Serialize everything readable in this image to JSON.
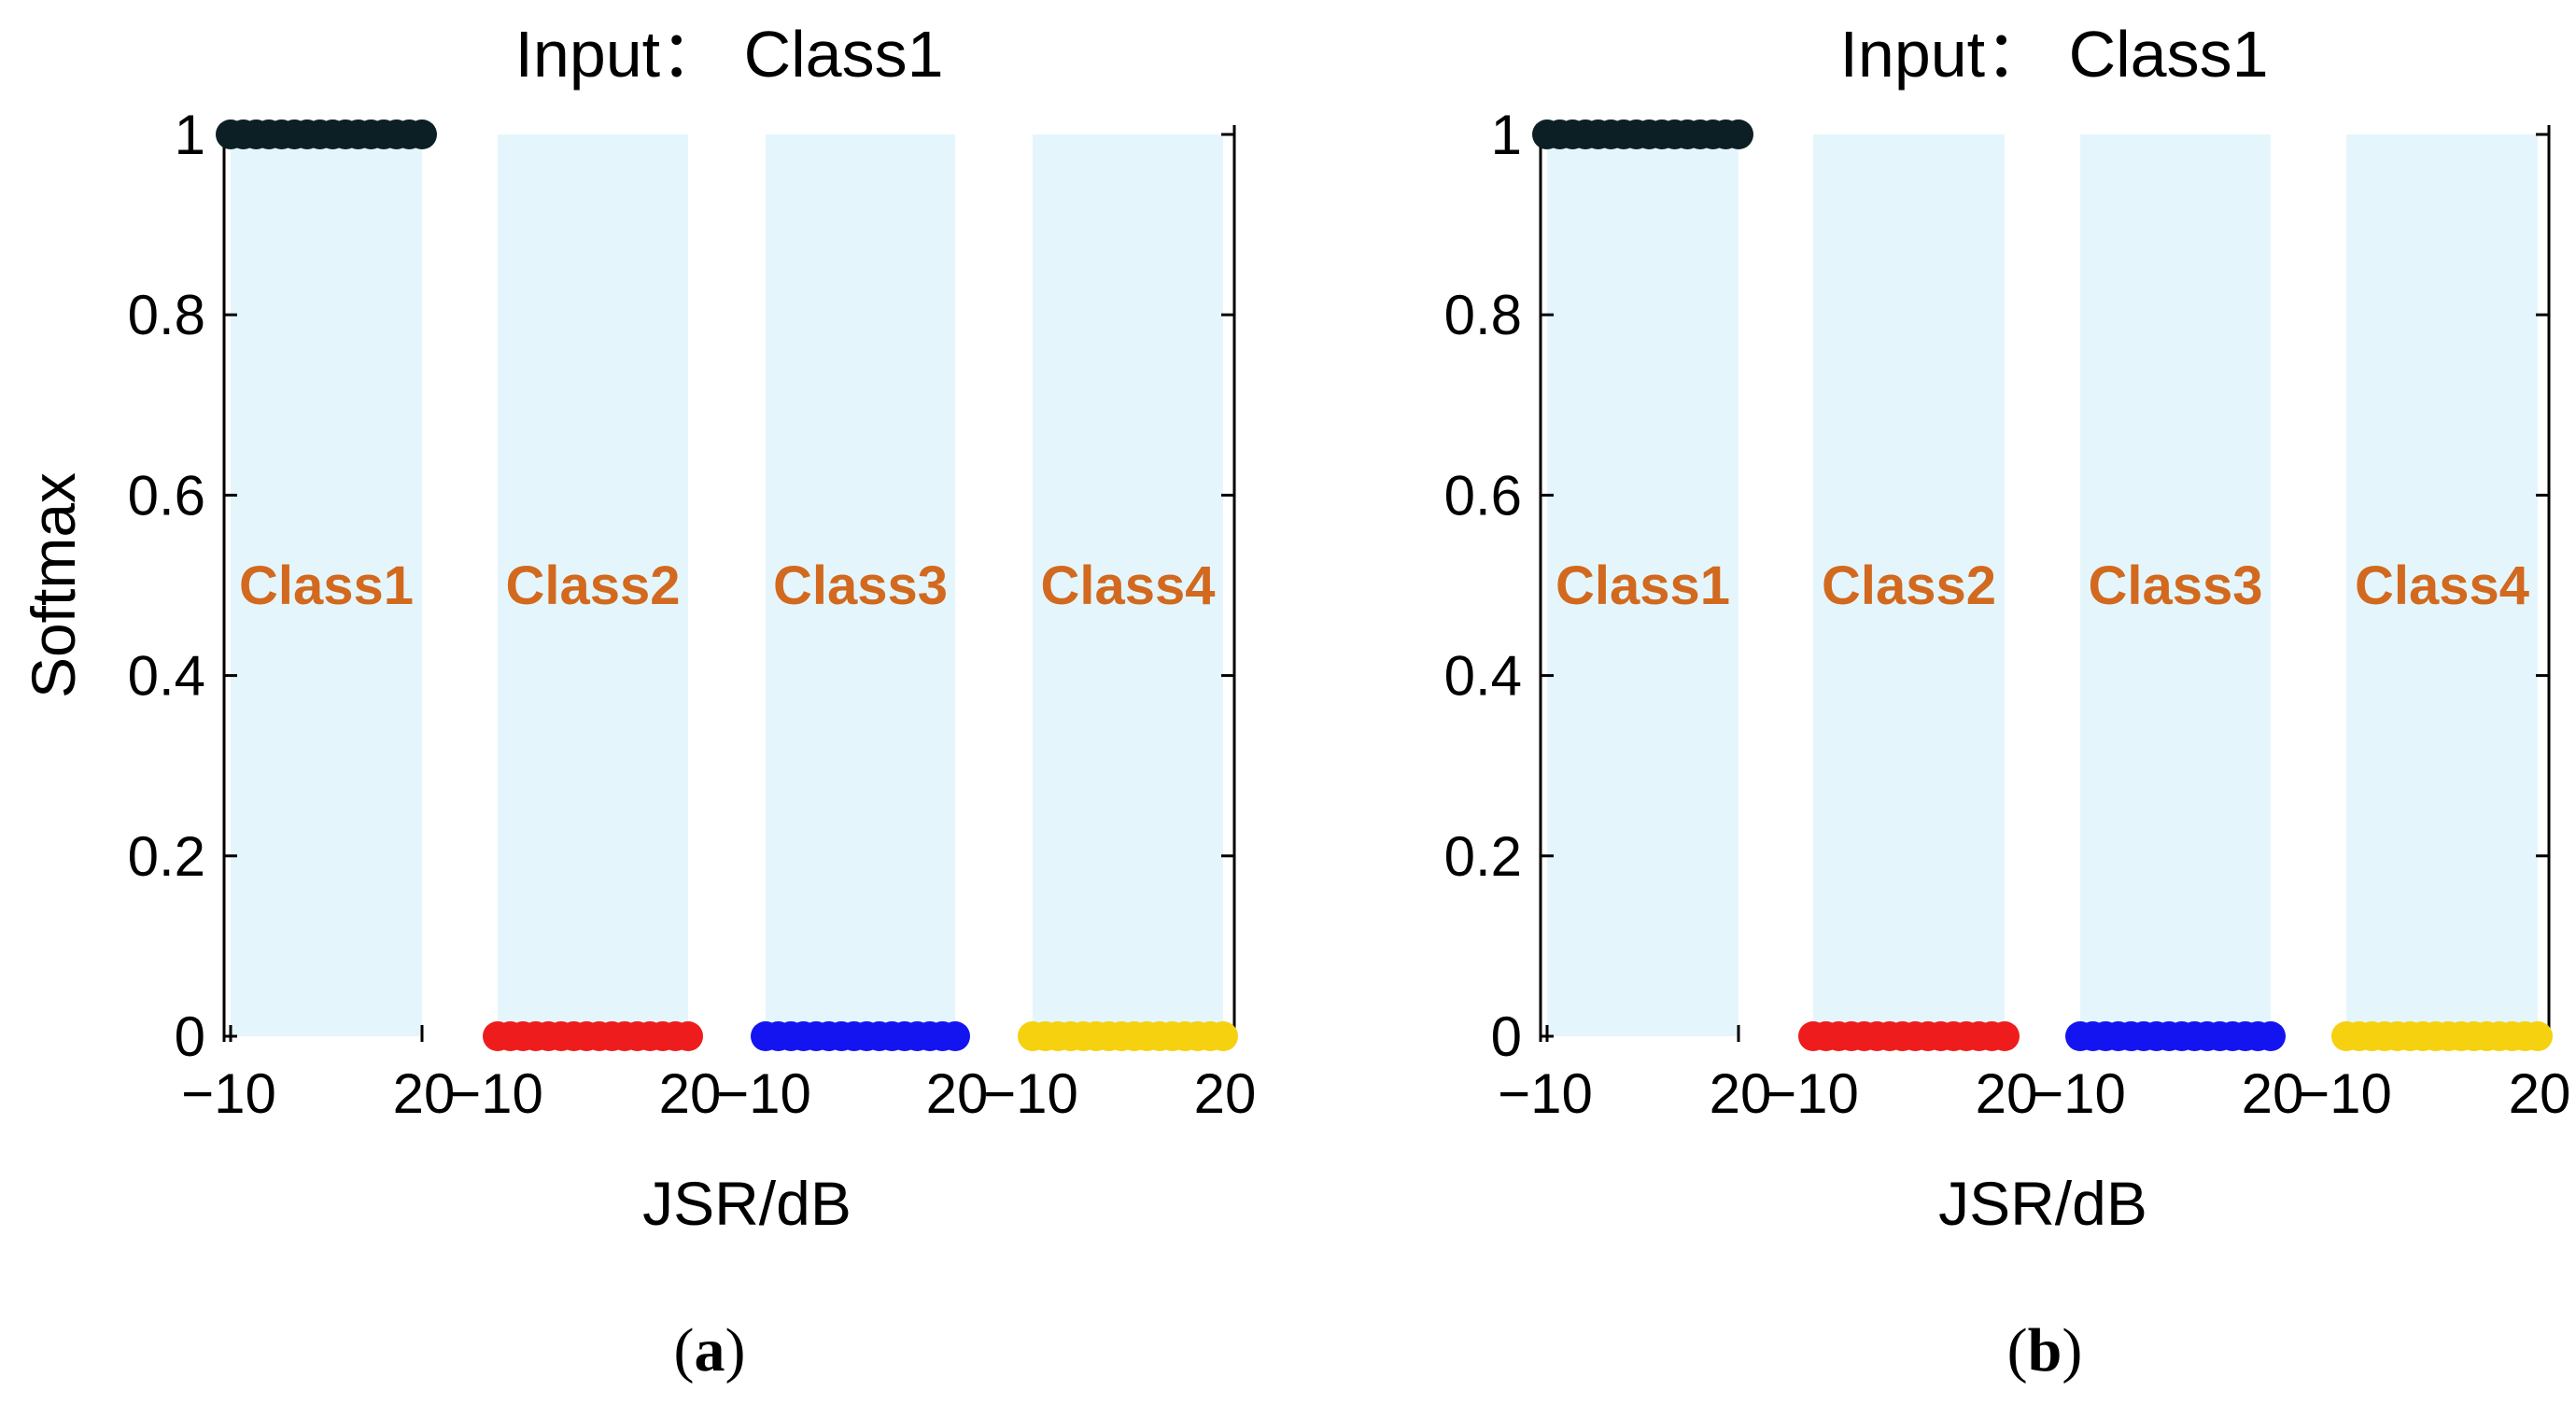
{
  "panels": [
    {
      "id": "a",
      "panel_label": "a",
      "chart_data": {
        "type": "scatter",
        "title": "Input： Class1",
        "xlabel": "JSR/dB",
        "ylabel": "Softmax",
        "ylim": [
          0,
          1
        ],
        "yticks": [
          "0",
          "0.2",
          "0.4",
          "0.6",
          "0.8",
          "1"
        ],
        "xticks_per_group": [
          "−10",
          "20"
        ],
        "xrange_per_group": [
          -10,
          20
        ],
        "grid": false,
        "groups": [
          {
            "label": "Class1",
            "band_color": "#E4F6FC",
            "point_color": "#0B1F24",
            "x": [
              -10,
              -8,
              -6,
              -4,
              -2,
              0,
              2,
              4,
              6,
              8,
              10,
              12,
              14,
              16,
              18,
              20
            ],
            "y": [
              1,
              1,
              1,
              1,
              1,
              1,
              1,
              1,
              1,
              1,
              1,
              1,
              1,
              1,
              1,
              1
            ]
          },
          {
            "label": "Class2",
            "band_color": "#E4F6FC",
            "point_color": "#EE1C1C",
            "x": [
              -10,
              -8,
              -6,
              -4,
              -2,
              0,
              2,
              4,
              6,
              8,
              10,
              12,
              14,
              16,
              18,
              20
            ],
            "y": [
              0,
              0,
              0,
              0,
              0,
              0,
              0,
              0,
              0,
              0,
              0,
              0,
              0,
              0,
              0,
              0
            ]
          },
          {
            "label": "Class3",
            "band_color": "#E4F6FC",
            "point_color": "#1414F0",
            "x": [
              -10,
              -8,
              -6,
              -4,
              -2,
              0,
              2,
              4,
              6,
              8,
              10,
              12,
              14,
              16,
              18,
              20
            ],
            "y": [
              0,
              0,
              0,
              0,
              0,
              0,
              0,
              0,
              0,
              0,
              0,
              0,
              0,
              0,
              0,
              0
            ]
          },
          {
            "label": "Class4",
            "band_color": "#E4F6FC",
            "point_color": "#F5D10F",
            "x": [
              -10,
              -8,
              -6,
              -4,
              -2,
              0,
              2,
              4,
              6,
              8,
              10,
              12,
              14,
              16,
              18,
              20
            ],
            "y": [
              0,
              0,
              0,
              0,
              0,
              0,
              0,
              0,
              0,
              0,
              0,
              0,
              0,
              0,
              0,
              0
            ]
          }
        ]
      }
    },
    {
      "id": "b",
      "panel_label": "b",
      "chart_data": {
        "type": "scatter",
        "title": "Input： Class1",
        "xlabel": "JSR/dB",
        "ylabel": "",
        "ylim": [
          0,
          1
        ],
        "yticks": [
          "0",
          "0.2",
          "0.4",
          "0.6",
          "0.8",
          "1"
        ],
        "xticks_per_group": [
          "−10",
          "20"
        ],
        "xrange_per_group": [
          -10,
          20
        ],
        "grid": false,
        "groups": [
          {
            "label": "Class1",
            "band_color": "#E4F6FC",
            "point_color": "#0B1F24",
            "x": [
              -10,
              -8,
              -6,
              -4,
              -2,
              0,
              2,
              4,
              6,
              8,
              10,
              12,
              14,
              16,
              18,
              20
            ],
            "y": [
              1,
              1,
              1,
              1,
              1,
              1,
              1,
              1,
              1,
              1,
              1,
              1,
              1,
              1,
              1,
              1
            ]
          },
          {
            "label": "Class2",
            "band_color": "#E4F6FC",
            "point_color": "#EE1C1C",
            "x": [
              -10,
              -8,
              -6,
              -4,
              -2,
              0,
              2,
              4,
              6,
              8,
              10,
              12,
              14,
              16,
              18,
              20
            ],
            "y": [
              0,
              0,
              0,
              0,
              0,
              0,
              0,
              0,
              0,
              0,
              0,
              0,
              0,
              0,
              0,
              0
            ]
          },
          {
            "label": "Class3",
            "band_color": "#E4F6FC",
            "point_color": "#1414F0",
            "x": [
              -10,
              -8,
              -6,
              -4,
              -2,
              0,
              2,
              4,
              6,
              8,
              10,
              12,
              14,
              16,
              18,
              20
            ],
            "y": [
              0,
              0,
              0,
              0,
              0,
              0,
              0,
              0,
              0,
              0,
              0,
              0,
              0,
              0,
              0,
              0
            ]
          },
          {
            "label": "Class4",
            "band_color": "#E4F6FC",
            "point_color": "#F5D10F",
            "x": [
              -10,
              -8,
              -6,
              -4,
              -2,
              0,
              2,
              4,
              6,
              8,
              10,
              12,
              14,
              16,
              18,
              20
            ],
            "y": [
              0,
              0,
              0,
              0,
              0,
              0,
              0,
              0,
              0,
              0,
              0,
              0,
              0,
              0,
              0,
              0
            ]
          }
        ]
      }
    }
  ]
}
